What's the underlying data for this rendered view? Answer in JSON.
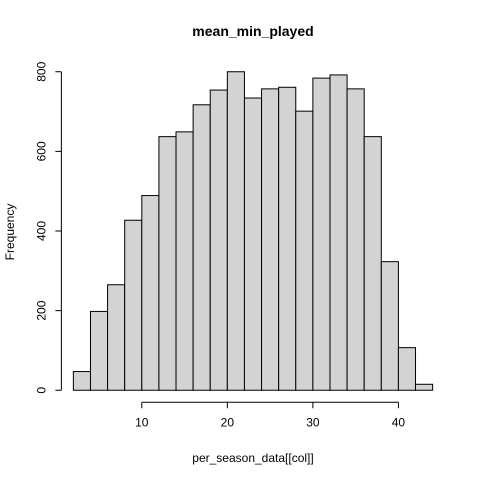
{
  "chart_data": {
    "type": "bar",
    "title": "mean_min_played",
    "xlabel": "per_season_data[[col]]",
    "ylabel": "Frequency",
    "bins": [
      [
        2,
        4
      ],
      [
        4,
        6
      ],
      [
        6,
        8
      ],
      [
        8,
        10
      ],
      [
        10,
        12
      ],
      [
        12,
        14
      ],
      [
        14,
        16
      ],
      [
        16,
        18
      ],
      [
        18,
        20
      ],
      [
        20,
        22
      ],
      [
        22,
        24
      ],
      [
        24,
        26
      ],
      [
        26,
        28
      ],
      [
        28,
        30
      ],
      [
        30,
        32
      ],
      [
        32,
        34
      ],
      [
        34,
        36
      ],
      [
        36,
        38
      ],
      [
        38,
        40
      ],
      [
        40,
        42
      ],
      [
        42,
        44
      ]
    ],
    "values": [
      47,
      198,
      265,
      427,
      489,
      637,
      649,
      717,
      754,
      800,
      734,
      757,
      761,
      701,
      784,
      792,
      757,
      637,
      323,
      107,
      15
    ],
    "xlim": [
      2,
      44
    ],
    "ylim": [
      0,
      800
    ],
    "xticks": [
      10,
      20,
      30,
      40
    ],
    "yticks": [
      0,
      200,
      400,
      600,
      800
    ],
    "bar_fill": "#d3d3d3",
    "bar_stroke": "#000000",
    "grid": false,
    "legend": "none"
  }
}
